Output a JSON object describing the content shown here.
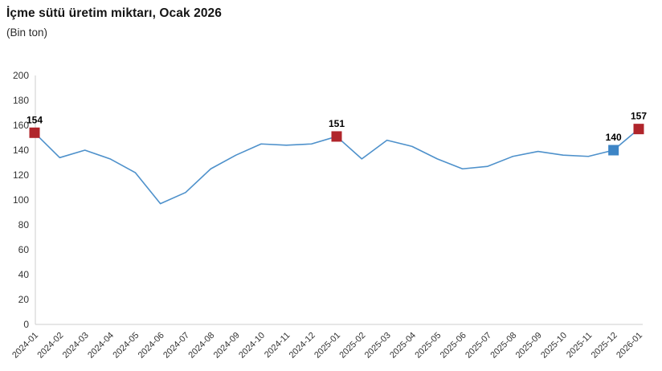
{
  "header": {
    "title": "İçme sütü üretim miktarı, Ocak 2026",
    "subtitle": "(Bin ton)"
  },
  "chart_data": {
    "type": "line",
    "title": "İçme sütü üretim miktarı, Ocak 2026",
    "subtitle": "(Bin ton)",
    "xlabel": "",
    "ylabel": "",
    "categories": [
      "2024-01",
      "2024-02",
      "2024-03",
      "2024-04",
      "2024-05",
      "2024-06",
      "2024-07",
      "2024-08",
      "2024-09",
      "2024-10",
      "2024-11",
      "2024-12",
      "2025-01",
      "2025-02",
      "2025-03",
      "2025-04",
      "2025-05",
      "2025-06",
      "2025-07",
      "2025-08",
      "2025-09",
      "2025-10",
      "2025-11",
      "2025-12",
      "2026-01"
    ],
    "values": [
      154,
      134,
      140,
      133,
      122,
      97,
      106,
      125,
      136,
      145,
      144,
      145,
      151,
      133,
      148,
      143,
      133,
      125,
      127,
      135,
      139,
      136,
      135,
      140,
      157
    ],
    "ylim": [
      0,
      200
    ],
    "ytick_step": 20,
    "grid": false,
    "legend": false,
    "line_color": "#4e91cb",
    "axis_color": "#cccccc",
    "tick_label_color": "#333333",
    "annotated_points": [
      {
        "index": 0,
        "category": "2024-01",
        "value": 154,
        "label": "154",
        "marker_color": "#b0252b"
      },
      {
        "index": 12,
        "category": "2025-01",
        "value": 151,
        "label": "151",
        "marker_color": "#b0252b"
      },
      {
        "index": 23,
        "category": "2025-12",
        "value": 140,
        "label": "140",
        "marker_color": "#3d85c6"
      },
      {
        "index": 24,
        "category": "2026-01",
        "value": 157,
        "label": "157",
        "marker_color": "#b0252b"
      }
    ]
  }
}
